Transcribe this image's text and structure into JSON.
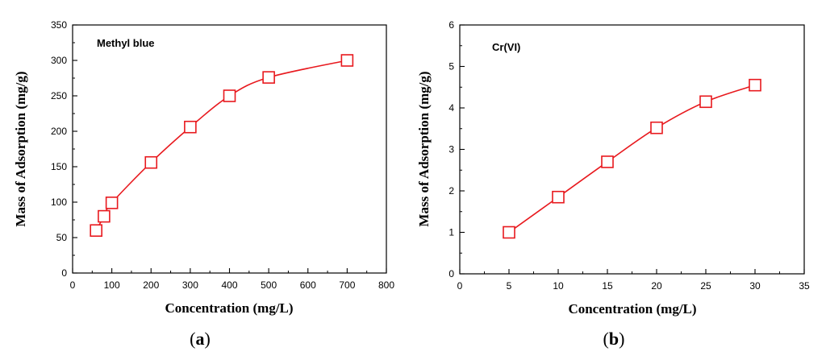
{
  "chart_data": [
    {
      "type": "line",
      "title": "Methyl blue",
      "xlabel": "Concentration (mg/L)",
      "ylabel": "Mass of Adsorption (mg/g)",
      "xlim": [
        0,
        800
      ],
      "ylim": [
        0,
        350
      ],
      "xticks": [
        "0",
        "100",
        "200",
        "300",
        "400",
        "500",
        "600",
        "700",
        "800"
      ],
      "yticks": [
        "0",
        "50",
        "100",
        "150",
        "200",
        "250",
        "300",
        "350"
      ],
      "series": [
        {
          "name": "Methyl blue",
          "color": "#e8191e",
          "marker": "square",
          "x": [
            60,
            80,
            100,
            200,
            300,
            400,
            500,
            700
          ],
          "y": [
            60,
            80,
            99,
            156,
            206,
            250,
            276,
            300
          ]
        }
      ],
      "caption": {
        "open": "(",
        "label": "a",
        "close": ")"
      }
    },
    {
      "type": "line",
      "title": "Cr(VI)",
      "xlabel": "Concentration (mg/L)",
      "ylabel": "Mass of Adsorption (mg/g)",
      "xlim": [
        0,
        35
      ],
      "ylim": [
        0,
        6
      ],
      "xticks": [
        "0",
        "5",
        "10",
        "15",
        "20",
        "25",
        "30",
        "35"
      ],
      "yticks": [
        "0",
        "1",
        "2",
        "3",
        "4",
        "5",
        "6"
      ],
      "series": [
        {
          "name": "Cr(VI)",
          "color": "#e8191e",
          "marker": "square",
          "x": [
            5,
            10,
            15,
            20,
            25,
            30
          ],
          "y": [
            1.0,
            1.85,
            2.7,
            3.52,
            4.15,
            4.55
          ]
        }
      ],
      "caption": {
        "open": "(",
        "label": "b",
        "close": ")"
      }
    }
  ]
}
